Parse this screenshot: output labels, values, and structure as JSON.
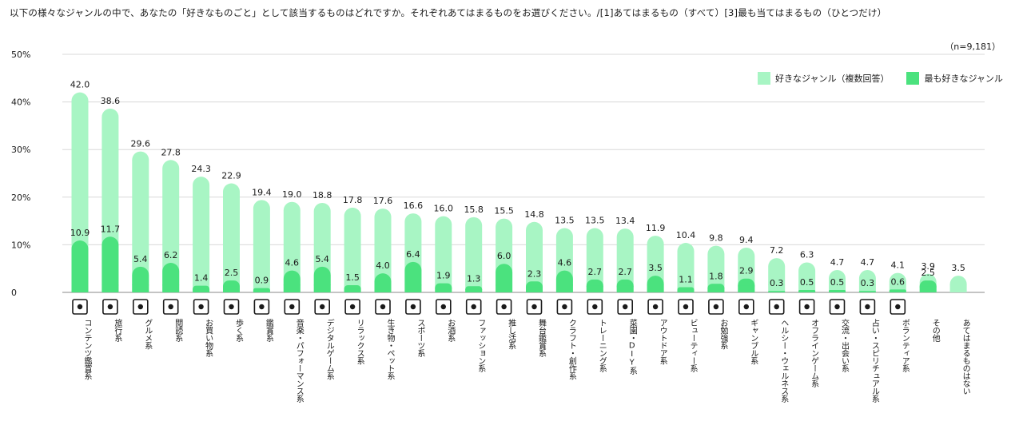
{
  "header": {
    "question": "以下の様々なジャンルの中で、あなたの「好きなものごと」として該当するものはどれですか。それぞれあてはまるものをお選びください。/[1]あてはまるもの（すべて）[3]最も当てはまるもの（ひとつだけ）",
    "sample": "（n=9,181）"
  },
  "colors": {
    "multi": "#a8f5c4",
    "top": "#4be27e",
    "grid": "#d8d8d8",
    "text": "#1a1a1a"
  },
  "chart_data": {
    "type": "bar",
    "ylim": [
      0,
      50
    ],
    "yticks": [
      "0",
      "10%",
      "20%",
      "30%",
      "40%",
      "50%"
    ],
    "legend_position": "top-right",
    "grid": true,
    "categories": [
      {
        "label": "コンテンツ鑑賞系",
        "icon": "film-icon"
      },
      {
        "label": "旅行系",
        "icon": "airplane-icon"
      },
      {
        "label": "グルメ系",
        "icon": "fork-knife-icon"
      },
      {
        "label": "閲読系",
        "icon": "book-icon"
      },
      {
        "label": "お買い物系",
        "icon": "cart-icon"
      },
      {
        "label": "歩く系",
        "icon": "shoe-icon"
      },
      {
        "label": "鑑賞系",
        "icon": "picture-icon"
      },
      {
        "label": "音楽・パフォーマンス系",
        "icon": "music-note-icon"
      },
      {
        "label": "デジタルゲーム系",
        "icon": "gamepad-icon"
      },
      {
        "label": "リラックス系",
        "icon": "hot-spring-icon"
      },
      {
        "label": "生き物・ペット系",
        "icon": "pet-icon"
      },
      {
        "label": "スポーツ系",
        "icon": "racket-icon"
      },
      {
        "label": "お酒系",
        "icon": "beer-icon"
      },
      {
        "label": "ファッション系",
        "icon": "jacket-icon"
      },
      {
        "label": "推し活系",
        "icon": "penlight-icon"
      },
      {
        "label": "舞台鑑賞系",
        "icon": "stage-icon"
      },
      {
        "label": "クラフト・創作系",
        "icon": "scissors-icon"
      },
      {
        "label": "トレーニング系",
        "icon": "runner-icon"
      },
      {
        "label": "菜園・DIY系",
        "icon": "watering-can-icon"
      },
      {
        "label": "アウトドア系",
        "icon": "mountain-icon"
      },
      {
        "label": "ビューティー系",
        "icon": "face-icon"
      },
      {
        "label": "お勉強系",
        "icon": "notebook-icon"
      },
      {
        "label": "ギャンブル系",
        "icon": "chip-icon"
      },
      {
        "label": "ヘルシー・ウェルネス系",
        "icon": "leaf-icon"
      },
      {
        "label": "オフラインゲーム系",
        "icon": "board-game-icon"
      },
      {
        "label": "交流・出会い系",
        "icon": "chat-icon"
      },
      {
        "label": "占い・スピリチュアル系",
        "icon": "sun-icon"
      },
      {
        "label": "ボランティア系",
        "icon": "heart-hand-icon"
      },
      {
        "label": "その他",
        "icon": ""
      },
      {
        "label": "あてはまるものはない",
        "icon": ""
      }
    ],
    "series": [
      {
        "name": "好きなジャンル（複数回答）",
        "values": [
          42.0,
          38.6,
          29.6,
          27.8,
          24.3,
          22.9,
          19.4,
          19.0,
          18.8,
          17.8,
          17.6,
          16.6,
          16.0,
          15.8,
          15.5,
          14.8,
          13.5,
          13.5,
          13.4,
          11.9,
          10.4,
          9.8,
          9.4,
          7.2,
          6.3,
          4.7,
          4.7,
          4.1,
          3.9,
          3.5
        ],
        "labels": [
          "42.0",
          "38.6",
          "29.6",
          "27.8",
          "24.3",
          "22.9",
          "19.4",
          "19.0",
          "18.8",
          "17.8",
          "17.6",
          "16.6",
          "16.0",
          "15.8",
          "15.5",
          "14.8",
          "13.5",
          "13.5",
          "13.4",
          "11.9",
          "10.4",
          "9.8",
          "9.4",
          "7.2",
          "6.3",
          "4.7",
          "4.7",
          "4.1",
          "3.9",
          "3.5"
        ]
      },
      {
        "name": "最も好きなジャンル",
        "values": [
          10.9,
          11.7,
          5.4,
          6.2,
          1.4,
          2.5,
          0.9,
          4.6,
          5.4,
          1.5,
          4.0,
          6.4,
          1.9,
          1.3,
          6.0,
          2.3,
          4.6,
          2.7,
          2.7,
          3.5,
          1.1,
          1.8,
          2.9,
          0.3,
          0.5,
          0.5,
          0.3,
          0.6,
          2.5,
          null
        ],
        "labels": [
          "10.9",
          "11.7",
          "5.4",
          "6.2",
          "1.4",
          "2.5",
          "0.9",
          "4.6",
          "5.4",
          "1.5",
          "4.0",
          "6.4",
          "1.9",
          "1.3",
          "6.0",
          "2.3",
          "4.6",
          "2.7",
          "2.7",
          "3.5",
          "1.1",
          "1.8",
          "2.9",
          "0.3",
          "0.5",
          "0.5",
          "0.3",
          "0.6",
          "2.5",
          ""
        ]
      }
    ]
  }
}
